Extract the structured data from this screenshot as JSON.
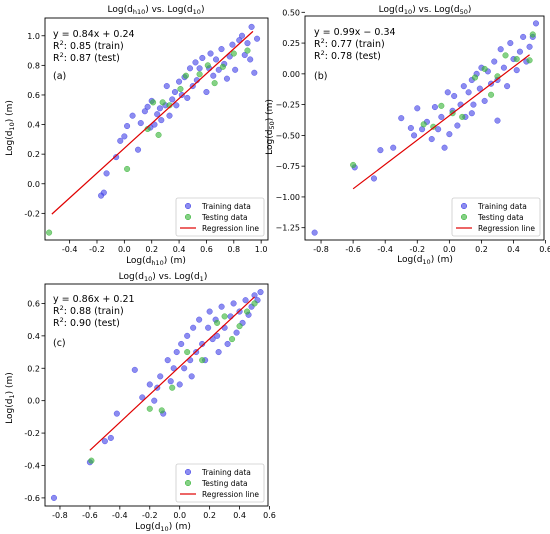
{
  "chart_data": [
    {
      "type": "scatter",
      "title": {
        "pre": "Log(d",
        "sub1": "h10",
        "mid": ") vs. Log(d",
        "sub2": "10",
        "post": ")"
      },
      "xlabel": {
        "pre": "Log(d",
        "sub": "h10",
        "post": ") (m)"
      },
      "ylabel": {
        "pre": "Log(d",
        "sub": "10",
        "post": ") (m)"
      },
      "panel_label": "(a)",
      "equation": "y = 0.84x + 0.24",
      "r2_train": ": 0.85 (train)",
      "r2_test": ": 0.87 (test)",
      "xlim": [
        -0.58,
        1.05
      ],
      "ylim": [
        -0.38,
        1.12
      ],
      "xticks": [
        {
          "v": -0.4,
          "t": "-0.4"
        },
        {
          "v": -0.2,
          "t": "-0.2"
        },
        {
          "v": 0.0,
          "t": "0.0"
        },
        {
          "v": 0.2,
          "t": "0.2"
        },
        {
          "v": 0.4,
          "t": "0.4"
        },
        {
          "v": 0.6,
          "t": "0.6"
        },
        {
          "v": 0.8,
          "t": "0.8"
        },
        {
          "v": 1.0,
          "t": "1.0"
        }
      ],
      "yticks": [
        {
          "v": -0.2,
          "t": "-0.2"
        },
        {
          "v": 0.0,
          "t": "0.0"
        },
        {
          "v": 0.2,
          "t": "0.2"
        },
        {
          "v": 0.4,
          "t": "0.4"
        },
        {
          "v": 0.6,
          "t": "0.6"
        },
        {
          "v": 0.8,
          "t": "0.8"
        },
        {
          "v": 1.0,
          "t": "1.0"
        }
      ],
      "regression": {
        "x": [
          -0.53,
          0.94
        ],
        "slope": 0.84,
        "intercept": 0.24
      },
      "series": [
        {
          "name": "Training data",
          "color": "#3f3fe6",
          "points": [
            [
              -0.17,
              -0.08
            ],
            [
              -0.15,
              -0.06
            ],
            [
              -0.13,
              0.07
            ],
            [
              -0.06,
              0.18
            ],
            [
              -0.03,
              0.29
            ],
            [
              0.0,
              0.32
            ],
            [
              0.02,
              0.39
            ],
            [
              0.06,
              0.46
            ],
            [
              0.1,
              0.23
            ],
            [
              0.12,
              0.41
            ],
            [
              0.15,
              0.49
            ],
            [
              0.17,
              0.52
            ],
            [
              0.19,
              0.38
            ],
            [
              0.2,
              0.56
            ],
            [
              0.22,
              0.4
            ],
            [
              0.24,
              0.47
            ],
            [
              0.26,
              0.51
            ],
            [
              0.27,
              0.43
            ],
            [
              0.3,
              0.53
            ],
            [
              0.31,
              0.66
            ],
            [
              0.33,
              0.46
            ],
            [
              0.35,
              0.57
            ],
            [
              0.37,
              0.62
            ],
            [
              0.38,
              0.53
            ],
            [
              0.4,
              0.69
            ],
            [
              0.42,
              0.6
            ],
            [
              0.44,
              0.72
            ],
            [
              0.46,
              0.58
            ],
            [
              0.48,
              0.78
            ],
            [
              0.5,
              0.66
            ],
            [
              0.52,
              0.82
            ],
            [
              0.53,
              0.7
            ],
            [
              0.55,
              0.78
            ],
            [
              0.57,
              0.85
            ],
            [
              0.6,
              0.62
            ],
            [
              0.62,
              0.78
            ],
            [
              0.63,
              0.88
            ],
            [
              0.65,
              0.73
            ],
            [
              0.67,
              0.84
            ],
            [
              0.69,
              0.77
            ],
            [
              0.71,
              0.91
            ],
            [
              0.73,
              0.81
            ],
            [
              0.75,
              0.71
            ],
            [
              0.77,
              0.86
            ],
            [
              0.79,
              0.94
            ],
            [
              0.81,
              0.77
            ],
            [
              0.84,
              0.97
            ],
            [
              0.86,
              1.0
            ],
            [
              0.88,
              0.87
            ],
            [
              0.9,
              0.95
            ],
            [
              0.92,
              0.84
            ],
            [
              0.93,
              1.06
            ],
            [
              0.95,
              0.75
            ],
            [
              0.97,
              0.98
            ]
          ]
        },
        {
          "name": "Testing data",
          "color": "#33b233",
          "points": [
            [
              -0.55,
              -0.33
            ],
            [
              0.02,
              0.1
            ],
            [
              0.17,
              0.37
            ],
            [
              0.21,
              0.55
            ],
            [
              0.25,
              0.33
            ],
            [
              0.28,
              0.55
            ],
            [
              0.33,
              0.53
            ],
            [
              0.41,
              0.64
            ],
            [
              0.45,
              0.73
            ],
            [
              0.55,
              0.74
            ],
            [
              0.61,
              0.8
            ],
            [
              0.66,
              0.68
            ],
            [
              0.72,
              0.79
            ],
            [
              0.8,
              0.88
            ],
            [
              0.9,
              0.9
            ]
          ]
        }
      ],
      "legend": {
        "position": "lower-right",
        "training": "Training data",
        "testing": "Testing data",
        "line": "Regression line"
      }
    },
    {
      "type": "scatter",
      "title": {
        "pre": "Log(d",
        "sub1": "10",
        "mid": ") vs. Log(d",
        "sub2": "50",
        "post": ")"
      },
      "xlabel": {
        "pre": "Log(d",
        "sub": "10",
        "post": ") (m)"
      },
      "ylabel": {
        "pre": "Log(d",
        "sub": "50",
        "post": ") (m)"
      },
      "panel_label": "(b)",
      "equation": "y = 0.99x − 0.34",
      "r2_train": ": 0.77 (train)",
      "r2_test": ": 0.78 (test)",
      "xlim": [
        -0.9,
        0.59
      ],
      "ylim": [
        -1.35,
        0.47
      ],
      "xticks": [
        {
          "v": -0.8,
          "t": "-0.8"
        },
        {
          "v": -0.6,
          "t": "-0.6"
        },
        {
          "v": -0.4,
          "t": "-0.4"
        },
        {
          "v": -0.2,
          "t": "-0.2"
        },
        {
          "v": 0.0,
          "t": "0.0"
        },
        {
          "v": 0.2,
          "t": "0.2"
        },
        {
          "v": 0.4,
          "t": "0.4"
        },
        {
          "v": 0.6,
          "t": "0.6"
        }
      ],
      "yticks": [
        {
          "v": -1.25,
          "t": "−1.25"
        },
        {
          "v": -1.0,
          "t": "−1.00"
        },
        {
          "v": -0.75,
          "t": "−0.75"
        },
        {
          "v": -0.5,
          "t": "−0.50"
        },
        {
          "v": -0.25,
          "t": "−0.25"
        },
        {
          "v": 0.0,
          "t": "0.00"
        },
        {
          "v": 0.25,
          "t": "0.25"
        },
        {
          "v": 0.5,
          "t": "0.50"
        }
      ],
      "regression": {
        "x": [
          -0.6,
          0.5
        ],
        "slope": 0.99,
        "intercept": -0.34
      },
      "series": [
        {
          "name": "Training data",
          "color": "#3f3fe6",
          "points": [
            [
              -0.84,
              -1.29
            ],
            [
              -0.59,
              -0.76
            ],
            [
              -0.47,
              -0.85
            ],
            [
              -0.43,
              -0.62
            ],
            [
              -0.35,
              -0.6
            ],
            [
              -0.3,
              -0.36
            ],
            [
              -0.24,
              -0.44
            ],
            [
              -0.22,
              -0.5
            ],
            [
              -0.2,
              -0.28
            ],
            [
              -0.17,
              -0.45
            ],
            [
              -0.14,
              -0.39
            ],
            [
              -0.11,
              -0.53
            ],
            [
              -0.09,
              -0.27
            ],
            [
              -0.07,
              -0.45
            ],
            [
              -0.05,
              -0.35
            ],
            [
              -0.03,
              -0.6
            ],
            [
              -0.01,
              -0.15
            ],
            [
              0.0,
              -0.49
            ],
            [
              0.02,
              -0.3
            ],
            [
              0.03,
              -0.18
            ],
            [
              0.05,
              -0.42
            ],
            [
              0.07,
              -0.25
            ],
            [
              0.09,
              -0.1
            ],
            [
              0.1,
              -0.35
            ],
            [
              0.12,
              -0.15
            ],
            [
              0.14,
              -0.05
            ],
            [
              0.15,
              -0.25
            ],
            [
              0.17,
              0.0
            ],
            [
              0.19,
              -0.12
            ],
            [
              0.2,
              0.05
            ],
            [
              0.22,
              -0.22
            ],
            [
              0.24,
              0.02
            ],
            [
              0.26,
              -0.08
            ],
            [
              0.28,
              0.1
            ],
            [
              0.3,
              -0.05
            ],
            [
              0.32,
              0.2
            ],
            [
              0.34,
              0.05
            ],
            [
              0.36,
              -0.1
            ],
            [
              0.38,
              0.25
            ],
            [
              0.4,
              0.12
            ],
            [
              0.42,
              0.03
            ],
            [
              0.44,
              0.18
            ],
            [
              0.46,
              0.3
            ],
            [
              0.48,
              0.1
            ],
            [
              0.5,
              0.22
            ],
            [
              0.52,
              0.3
            ],
            [
              0.54,
              0.41
            ],
            [
              0.3,
              -0.38
            ],
            [
              0.14,
              -0.32
            ]
          ]
        },
        {
          "name": "Testing data",
          "color": "#33b233",
          "points": [
            [
              -0.6,
              -0.74
            ],
            [
              -0.16,
              -0.41
            ],
            [
              -0.1,
              -0.43
            ],
            [
              -0.05,
              -0.26
            ],
            [
              0.02,
              -0.32
            ],
            [
              0.08,
              -0.35
            ],
            [
              0.16,
              -0.03
            ],
            [
              0.22,
              0.04
            ],
            [
              0.26,
              -0.17
            ],
            [
              0.3,
              -0.02
            ],
            [
              0.35,
              0.15
            ],
            [
              0.42,
              0.12
            ],
            [
              0.5,
              0.11
            ],
            [
              0.52,
              0.32
            ]
          ]
        }
      ],
      "legend": {
        "position": "lower-right",
        "training": "Training data",
        "testing": "Testing data",
        "line": "Regression line"
      }
    },
    {
      "type": "scatter",
      "title": {
        "pre": "Log(d",
        "sub1": "10",
        "mid": ") vs. Log(d",
        "sub2": "1",
        "post": ")"
      },
      "xlabel": {
        "pre": "Log(d",
        "sub": "10",
        "post": ") (m)"
      },
      "ylabel": {
        "pre": "Log(d",
        "sub": "1",
        "post": ") (m)"
      },
      "panel_label": "(c)",
      "equation": "y = 0.86x + 0.21",
      "r2_train": ": 0.88 (train)",
      "r2_test": ": 0.90 (test)",
      "xlim": [
        -0.9,
        0.59
      ],
      "ylim": [
        -0.65,
        0.72
      ],
      "xticks": [
        {
          "v": -0.8,
          "t": "-0.8"
        },
        {
          "v": -0.6,
          "t": "-0.6"
        },
        {
          "v": -0.4,
          "t": "-0.4"
        },
        {
          "v": -0.2,
          "t": "-0.2"
        },
        {
          "v": 0.0,
          "t": "0.0"
        },
        {
          "v": 0.2,
          "t": "0.2"
        },
        {
          "v": 0.4,
          "t": "0.4"
        },
        {
          "v": 0.6,
          "t": "0.6"
        }
      ],
      "yticks": [
        {
          "v": -0.6,
          "t": "-0.6"
        },
        {
          "v": -0.4,
          "t": "-0.4"
        },
        {
          "v": -0.2,
          "t": "-0.2"
        },
        {
          "v": 0.0,
          "t": "0.0"
        },
        {
          "v": 0.2,
          "t": "0.2"
        },
        {
          "v": 0.4,
          "t": "0.4"
        },
        {
          "v": 0.6,
          "t": "0.6"
        }
      ],
      "regression": {
        "x": [
          -0.6,
          0.5
        ],
        "slope": 0.86,
        "intercept": 0.21
      },
      "series": [
        {
          "name": "Training data",
          "color": "#3f3fe6",
          "points": [
            [
              -0.84,
              -0.6
            ],
            [
              -0.6,
              -0.38
            ],
            [
              -0.5,
              -0.25
            ],
            [
              -0.46,
              -0.23
            ],
            [
              -0.42,
              -0.08
            ],
            [
              -0.3,
              0.19
            ],
            [
              -0.25,
              0.02
            ],
            [
              -0.2,
              0.1
            ],
            [
              -0.17,
              0.0
            ],
            [
              -0.15,
              0.08
            ],
            [
              -0.13,
              0.15
            ],
            [
              -0.11,
              -0.08
            ],
            [
              -0.08,
              0.25
            ],
            [
              -0.06,
              0.12
            ],
            [
              -0.04,
              0.2
            ],
            [
              -0.02,
              0.3
            ],
            [
              0.0,
              0.1
            ],
            [
              0.01,
              0.35
            ],
            [
              0.03,
              0.2
            ],
            [
              0.05,
              0.4
            ],
            [
              0.07,
              0.25
            ],
            [
              0.09,
              0.45
            ],
            [
              0.11,
              0.3
            ],
            [
              0.13,
              0.5
            ],
            [
              0.15,
              0.35
            ],
            [
              0.17,
              0.25
            ],
            [
              0.19,
              0.45
            ],
            [
              0.2,
              0.55
            ],
            [
              0.22,
              0.38
            ],
            [
              0.24,
              0.5
            ],
            [
              0.26,
              0.3
            ],
            [
              0.28,
              0.58
            ],
            [
              0.3,
              0.45
            ],
            [
              0.32,
              0.35
            ],
            [
              0.34,
              0.52
            ],
            [
              0.36,
              0.6
            ],
            [
              0.38,
              0.42
            ],
            [
              0.4,
              0.55
            ],
            [
              0.42,
              0.48
            ],
            [
              0.44,
              0.62
            ],
            [
              0.46,
              0.53
            ],
            [
              0.48,
              0.58
            ],
            [
              0.5,
              0.65
            ],
            [
              0.52,
              0.62
            ],
            [
              0.54,
              0.67
            ],
            [
              0.25,
              0.4
            ],
            [
              0.08,
              0.15
            ]
          ]
        },
        {
          "name": "Testing data",
          "color": "#33b233",
          "points": [
            [
              -0.59,
              -0.37
            ],
            [
              -0.2,
              -0.05
            ],
            [
              -0.12,
              -0.06
            ],
            [
              -0.05,
              0.08
            ],
            [
              0.05,
              0.3
            ],
            [
              0.15,
              0.25
            ],
            [
              0.25,
              0.48
            ],
            [
              0.3,
              0.52
            ],
            [
              0.35,
              0.38
            ],
            [
              0.4,
              0.46
            ],
            [
              0.45,
              0.55
            ],
            [
              0.5,
              0.6
            ]
          ]
        }
      ],
      "legend": {
        "position": "lower-right",
        "training": "Training data",
        "testing": "Testing data",
        "line": "Regression line"
      }
    }
  ]
}
